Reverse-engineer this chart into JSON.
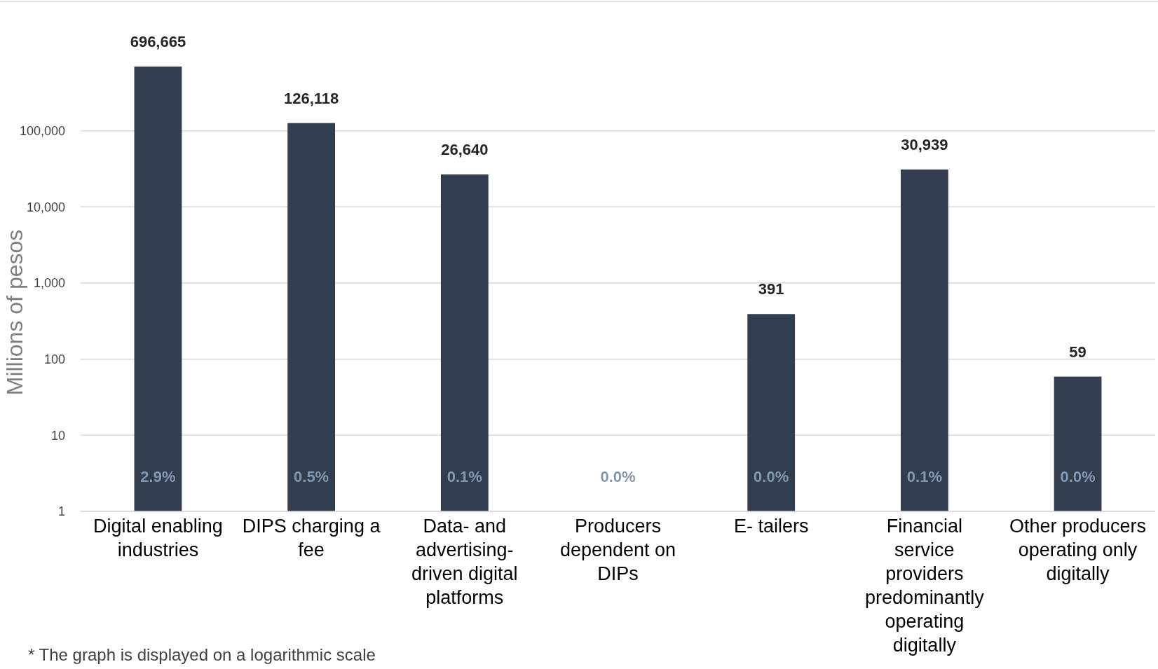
{
  "chart_data": {
    "type": "bar",
    "ylabel": "Millions of pesos",
    "categories": [
      "Digital enabling industries",
      "DIPS charging a fee",
      "Data- and advertising-driven digital platforms",
      "Producers dependent on DIPs",
      "E- tailers",
      "Financial service providers predominantly operating digitally",
      "Other producers operating only digitally"
    ],
    "values": [
      696665,
      126118,
      26640,
      null,
      391,
      30939,
      59
    ],
    "color": "#323d4f",
    "log": true,
    "ylim": [
      1,
      5000000
    ],
    "yticks": [
      {
        "value": 1,
        "label": "1"
      },
      {
        "value": 10,
        "label": "10"
      },
      {
        "value": 100,
        "label": "100"
      },
      {
        "value": 1000,
        "label": "1,000"
      },
      {
        "value": 10000,
        "label": "10,000"
      },
      {
        "value": 100000,
        "label": "100,000"
      }
    ],
    "grid": "y",
    "value_labels": [
      "696,665",
      "126,118",
      "26,640",
      null,
      "391",
      "30,939",
      "59"
    ],
    "annotations": [
      "2.9%",
      "0.5%",
      "0.1%",
      "0.0%",
      "0.0%",
      "0.1%",
      "0.0%",
      "* The graph is displayed on a logarithmic scale"
    ]
  }
}
